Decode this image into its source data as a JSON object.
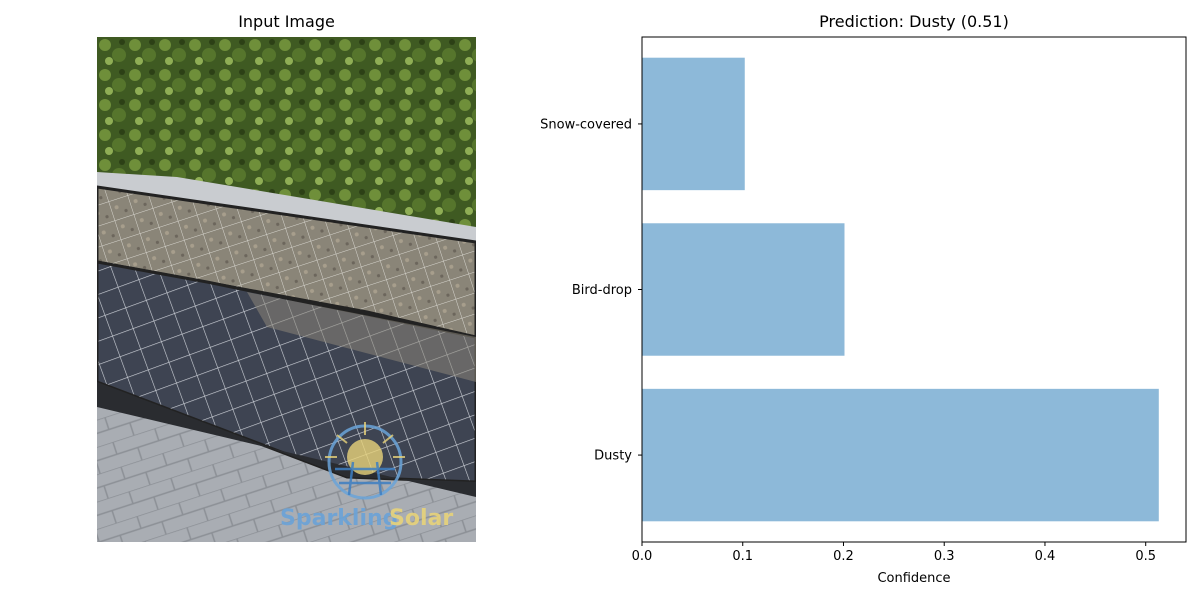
{
  "left_panel": {
    "title": "Input Image",
    "logo_text_1": "Sparkling",
    "logo_text_2": "Solar",
    "colors": {
      "logo_blue": "#6aa3d8",
      "logo_yellow": "#e8d37a"
    }
  },
  "chart_data": {
    "type": "bar",
    "orientation": "horizontal",
    "title": "Prediction: Dusty (0.51)",
    "xlabel": "Confidence",
    "ylabel": "",
    "categories": [
      "Dusty",
      "Bird-drop",
      "Snow-covered"
    ],
    "values": [
      0.513,
      0.201,
      0.102
    ],
    "xlim": [
      0,
      0.54
    ],
    "xticks": [
      "0.0",
      "0.1",
      "0.2",
      "0.3",
      "0.4",
      "0.5"
    ],
    "grid": false,
    "bar_color": "#8db9d9"
  }
}
